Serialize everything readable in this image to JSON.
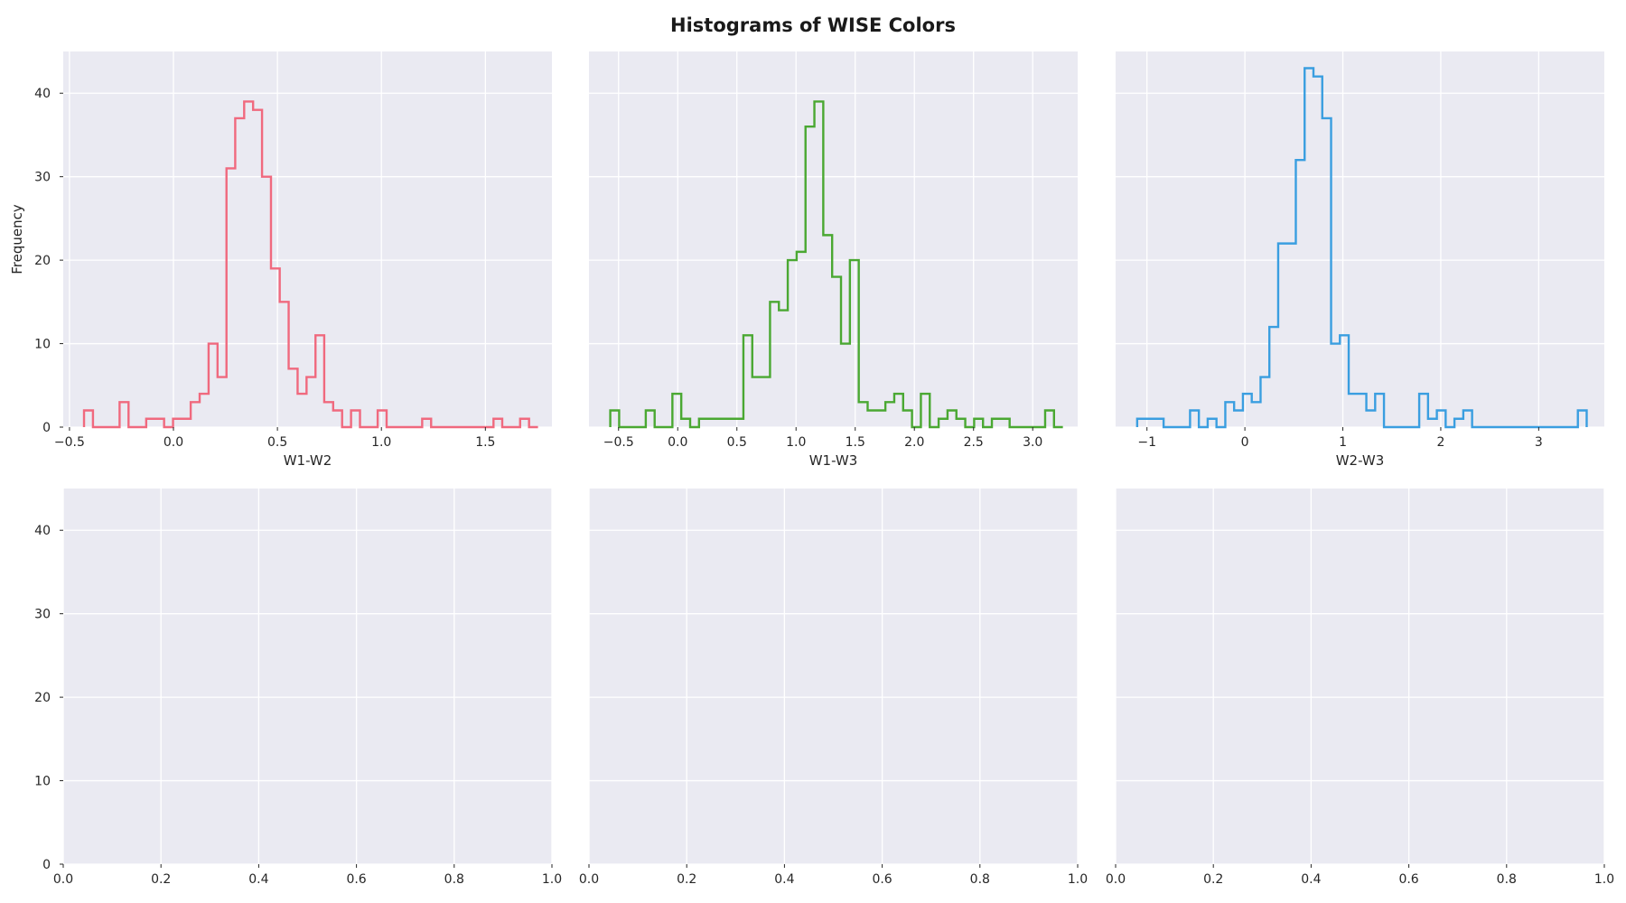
{
  "figure": {
    "title": "Histograms of WISE Colors"
  },
  "chart_data": [
    {
      "type": "histogram",
      "panel": "row-1-col-1",
      "xlabel": "W1-W2",
      "ylabel": "Frequency",
      "xlim": [
        -0.53,
        1.82
      ],
      "ylim": [
        0,
        45
      ],
      "xticks": [
        -0.5,
        0.0,
        0.5,
        1.0,
        1.5
      ],
      "xtick_labels": [
        "−0.5",
        "0.0",
        "0.5",
        "1.0",
        "1.5"
      ],
      "yticks": [
        0,
        10,
        20,
        30,
        40
      ],
      "color": "#f0697e",
      "bin_edges": [
        -0.43,
        -0.387,
        -0.345,
        -0.302,
        -0.259,
        -0.216,
        -0.173,
        -0.131,
        -0.088,
        -0.045,
        -0.002,
        0.041,
        0.083,
        0.126,
        0.169,
        0.212,
        0.255,
        0.297,
        0.34,
        0.383,
        0.426,
        0.469,
        0.511,
        0.554,
        0.597,
        0.64,
        0.683,
        0.725,
        0.768,
        0.811,
        0.854,
        0.897,
        0.939,
        0.982,
        1.025,
        1.068,
        1.111,
        1.153,
        1.196,
        1.239,
        1.282,
        1.325,
        1.367,
        1.41,
        1.453,
        1.496,
        1.539,
        1.581,
        1.624,
        1.667,
        1.71,
        1.753
      ],
      "counts": [
        2,
        0,
        0,
        0,
        3,
        0,
        0,
        1,
        1,
        0,
        1,
        1,
        3,
        4,
        10,
        6,
        31,
        37,
        39,
        38,
        30,
        19,
        15,
        7,
        4,
        6,
        11,
        3,
        2,
        0,
        2,
        0,
        0,
        2,
        0,
        0,
        0,
        0,
        1,
        0,
        0,
        0,
        0,
        0,
        0,
        0,
        1,
        0,
        0,
        1,
        0
      ]
    },
    {
      "type": "histogram",
      "panel": "row-1-col-2",
      "xlabel": "W1-W3",
      "ylabel": "",
      "xlim": [
        -0.75,
        3.38
      ],
      "ylim": [
        0,
        45
      ],
      "xticks": [
        -0.5,
        0.0,
        0.5,
        1.0,
        1.5,
        2.0,
        2.5,
        3.0
      ],
      "xtick_labels": [
        "−0.5",
        "0.0",
        "0.5",
        "1.0",
        "1.5",
        "2.0",
        "2.5",
        "3.0"
      ],
      "yticks": [
        0,
        10,
        20,
        30,
        40
      ],
      "color": "#4aa832",
      "bin_edges": [
        -0.57,
        -0.495,
        -0.42,
        -0.345,
        -0.27,
        -0.195,
        -0.12,
        -0.045,
        0.03,
        0.105,
        0.18,
        0.255,
        0.33,
        0.405,
        0.48,
        0.555,
        0.63,
        0.705,
        0.78,
        0.855,
        0.93,
        1.005,
        1.08,
        1.155,
        1.23,
        1.305,
        1.38,
        1.455,
        1.53,
        1.605,
        1.68,
        1.755,
        1.83,
        1.905,
        1.98,
        2.055,
        2.13,
        2.205,
        2.28,
        2.355,
        2.43,
        2.505,
        2.58,
        2.655,
        2.73,
        2.805,
        2.88,
        2.955,
        3.03,
        3.105,
        3.18,
        3.255
      ],
      "counts": [
        2,
        0,
        0,
        0,
        2,
        0,
        0,
        4,
        1,
        0,
        1,
        1,
        1,
        1,
        1,
        11,
        6,
        6,
        15,
        14,
        20,
        21,
        36,
        39,
        23,
        18,
        10,
        20,
        3,
        2,
        2,
        3,
        4,
        2,
        0,
        4,
        0,
        1,
        2,
        1,
        0,
        1,
        0,
        1,
        1,
        0,
        0,
        0,
        0,
        2,
        0
      ]
    },
    {
      "type": "histogram",
      "panel": "row-1-col-3",
      "xlabel": "W2-W3",
      "ylabel": "",
      "xlim": [
        -1.32,
        3.67
      ],
      "ylim": [
        0,
        45
      ],
      "xticks": [
        -1,
        0,
        1,
        2,
        3
      ],
      "xtick_labels": [
        "−1",
        "0",
        "1",
        "2",
        "3"
      ],
      "yticks": [
        0,
        10,
        20,
        30,
        40
      ],
      "color": "#3a9ee0",
      "bin_edges": [
        -1.1,
        -1.01,
        -0.92,
        -0.83,
        -0.74,
        -0.65,
        -0.56,
        -0.47,
        -0.38,
        -0.29,
        -0.2,
        -0.11,
        -0.02,
        0.07,
        0.16,
        0.25,
        0.34,
        0.43,
        0.52,
        0.61,
        0.7,
        0.79,
        0.88,
        0.97,
        1.06,
        1.15,
        1.24,
        1.33,
        1.42,
        1.51,
        1.6,
        1.69,
        1.78,
        1.87,
        1.96,
        2.05,
        2.14,
        2.23,
        2.32,
        2.41,
        2.5,
        2.59,
        2.68,
        2.77,
        2.86,
        2.95,
        3.04,
        3.13,
        3.22,
        3.31,
        3.4,
        3.49
      ],
      "counts": [
        1,
        1,
        1,
        0,
        0,
        0,
        2,
        0,
        1,
        0,
        3,
        2,
        4,
        3,
        6,
        12,
        22,
        22,
        32,
        43,
        42,
        37,
        10,
        11,
        4,
        4,
        2,
        4,
        0,
        0,
        0,
        0,
        4,
        1,
        2,
        0,
        1,
        2,
        0,
        0,
        0,
        0,
        0,
        0,
        0,
        0,
        0,
        0,
        0,
        0,
        2
      ]
    },
    {
      "type": "empty",
      "panel": "row-2-col-1",
      "xlim": [
        0,
        1
      ],
      "ylim": [
        0,
        45
      ],
      "xticks": [
        0.0,
        0.2,
        0.4,
        0.6,
        0.8,
        1.0
      ],
      "xtick_labels": [
        "0.0",
        "0.2",
        "0.4",
        "0.6",
        "0.8",
        "1.0"
      ],
      "yticks": [
        0,
        10,
        20,
        30,
        40
      ]
    },
    {
      "type": "empty",
      "panel": "row-2-col-2",
      "xlim": [
        0,
        1
      ],
      "ylim": [
        0,
        45
      ],
      "xticks": [
        0.0,
        0.2,
        0.4,
        0.6,
        0.8,
        1.0
      ],
      "xtick_labels": [
        "0.0",
        "0.2",
        "0.4",
        "0.6",
        "0.8",
        "1.0"
      ],
      "yticks": [
        0,
        10,
        20,
        30,
        40
      ]
    },
    {
      "type": "empty",
      "panel": "row-2-col-3",
      "xlim": [
        0,
        1
      ],
      "ylim": [
        0,
        45
      ],
      "xticks": [
        0.0,
        0.2,
        0.4,
        0.6,
        0.8,
        1.0
      ],
      "xtick_labels": [
        "0.0",
        "0.2",
        "0.4",
        "0.6",
        "0.8",
        "1.0"
      ],
      "yticks": [
        0,
        10,
        20,
        30,
        40
      ]
    }
  ]
}
